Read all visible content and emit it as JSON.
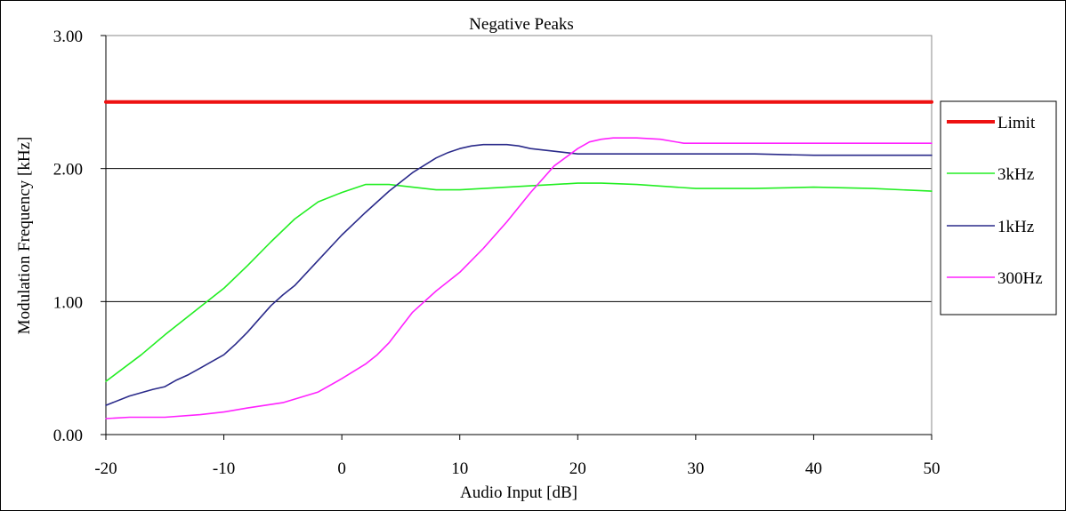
{
  "chart_data": {
    "type": "line",
    "title": "Negative Peaks",
    "xlabel": "Audio Input [dB]",
    "ylabel": "Modulation Frequency [kHz]",
    "xlim": [
      -20,
      50
    ],
    "ylim": [
      0,
      3
    ],
    "x_ticks": [
      -20,
      -10,
      0,
      10,
      20,
      30,
      40,
      50
    ],
    "x_tick_labels": [
      "-20",
      "-10",
      "0",
      "10",
      "20",
      "30",
      "40",
      "50"
    ],
    "y_ticks": [
      0,
      1,
      2,
      3
    ],
    "y_tick_labels": [
      "0.00",
      "1.00",
      "2.00",
      "3.00"
    ],
    "grid": "horizontal",
    "legend": "right",
    "series": [
      {
        "name": "Limit",
        "color": "#ee1111",
        "x": [
          -20,
          50
        ],
        "y": [
          2.5,
          2.5
        ]
      },
      {
        "name": "3kHz",
        "color": "#22ee22",
        "x": [
          -20,
          -17,
          -15,
          -12,
          -10,
          -8,
          -6,
          -4,
          -2,
          0,
          2,
          4,
          6,
          8,
          10,
          12,
          14,
          16,
          18,
          20,
          22,
          25,
          30,
          35,
          40,
          45,
          50
        ],
        "y": [
          0.4,
          0.6,
          0.75,
          0.96,
          1.1,
          1.27,
          1.45,
          1.62,
          1.75,
          1.82,
          1.88,
          1.88,
          1.86,
          1.84,
          1.84,
          1.85,
          1.86,
          1.87,
          1.88,
          1.89,
          1.89,
          1.88,
          1.85,
          1.85,
          1.86,
          1.85,
          1.83
        ]
      },
      {
        "name": "1kHz",
        "color": "#2a2a8a",
        "x": [
          -20,
          -18,
          -16,
          -15,
          -14,
          -13,
          -12,
          -11,
          -10,
          -9,
          -8,
          -7,
          -6,
          -5,
          -4,
          -2,
          0,
          2,
          4,
          6,
          8,
          9,
          10,
          11,
          12,
          13,
          14,
          15,
          16,
          17,
          18,
          19,
          20,
          22,
          25,
          30,
          35,
          40,
          45,
          50
        ],
        "y": [
          0.22,
          0.29,
          0.34,
          0.36,
          0.41,
          0.45,
          0.5,
          0.55,
          0.6,
          0.68,
          0.77,
          0.87,
          0.97,
          1.05,
          1.12,
          1.31,
          1.5,
          1.67,
          1.83,
          1.97,
          2.08,
          2.12,
          2.15,
          2.17,
          2.18,
          2.18,
          2.18,
          2.17,
          2.15,
          2.14,
          2.13,
          2.12,
          2.11,
          2.11,
          2.11,
          2.11,
          2.11,
          2.1,
          2.1,
          2.1
        ]
      },
      {
        "name": "300Hz",
        "color": "#ff22ff",
        "x": [
          -20,
          -18,
          -15,
          -12,
          -10,
          -8,
          -5,
          -2,
          0,
          2,
          3,
          4,
          6,
          8,
          10,
          12,
          14,
          16,
          18,
          20,
          21,
          22,
          23,
          25,
          27,
          29,
          30,
          35,
          40,
          45,
          50
        ],
        "y": [
          0.12,
          0.13,
          0.13,
          0.15,
          0.17,
          0.2,
          0.24,
          0.32,
          0.42,
          0.53,
          0.6,
          0.69,
          0.92,
          1.08,
          1.22,
          1.4,
          1.6,
          1.82,
          2.02,
          2.15,
          2.2,
          2.22,
          2.23,
          2.23,
          2.22,
          2.19,
          2.19,
          2.19,
          2.19,
          2.19,
          2.19
        ]
      }
    ]
  }
}
